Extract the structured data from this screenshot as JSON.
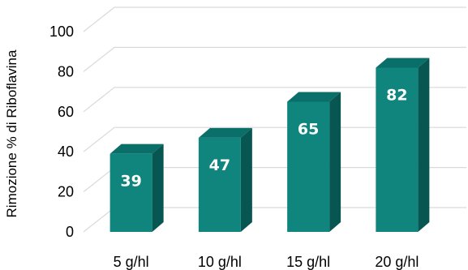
{
  "chart_data": {
    "type": "bar",
    "title": "",
    "xlabel": "",
    "ylabel": "Rimozione % di Riboflavina",
    "categories": [
      "5 g/hl",
      "10 g/hl",
      "15 g/hl",
      "20 g/hl"
    ],
    "values": [
      39,
      47,
      65,
      82
    ],
    "data_labels": [
      "39",
      "47",
      "65",
      "82"
    ],
    "ylim": [
      0,
      100
    ],
    "yticks": [
      "0",
      "20",
      "40",
      "60",
      "80",
      "100"
    ],
    "grid": true,
    "legend": "none",
    "style": "3d-column",
    "colors": {
      "bar_front": "#0f857e",
      "bar_top": "#0a6e69",
      "bar_side": "#075652",
      "gridline": "#d9d9d9"
    }
  }
}
